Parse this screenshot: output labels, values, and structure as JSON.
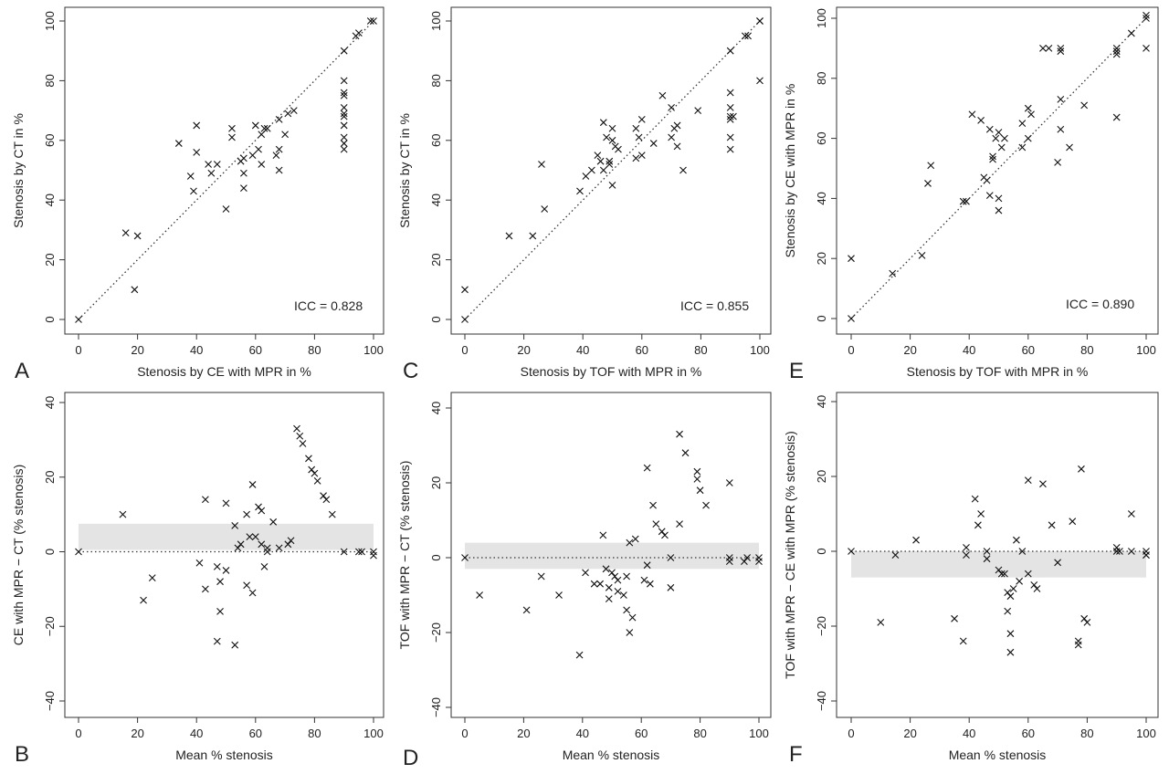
{
  "chart_data": [
    {
      "panel": "A",
      "type": "scatter",
      "xlabel": "Stenosis by CE with MPR in %",
      "ylabel": "Stenosis by CT in %",
      "xlim": [
        0,
        100
      ],
      "ylim": [
        0,
        100
      ],
      "xticks": [
        "0",
        "20",
        "40",
        "60",
        "80",
        "100"
      ],
      "yticks": [
        "0",
        "20",
        "40",
        "60",
        "80",
        "100"
      ],
      "annotation": "ICC =  0.828",
      "identity_line": true,
      "points": [
        [
          0,
          0
        ],
        [
          16,
          29
        ],
        [
          20,
          28
        ],
        [
          19,
          10
        ],
        [
          34,
          59
        ],
        [
          38,
          48
        ],
        [
          39,
          43
        ],
        [
          40,
          56
        ],
        [
          40,
          65
        ],
        [
          44,
          52
        ],
        [
          45,
          49
        ],
        [
          47,
          52
        ],
        [
          50,
          37
        ],
        [
          52,
          61
        ],
        [
          52,
          64
        ],
        [
          55,
          53
        ],
        [
          56,
          54
        ],
        [
          56,
          49
        ],
        [
          56,
          44
        ],
        [
          59,
          55
        ],
        [
          60,
          65
        ],
        [
          61,
          57
        ],
        [
          62,
          52
        ],
        [
          62,
          62
        ],
        [
          63,
          64
        ],
        [
          64,
          64
        ],
        [
          67,
          55
        ],
        [
          68,
          57
        ],
        [
          68,
          50
        ],
        [
          68,
          67
        ],
        [
          70,
          62
        ],
        [
          71,
          69
        ],
        [
          73,
          70
        ],
        [
          90,
          90
        ],
        [
          94,
          95
        ],
        [
          95,
          96
        ],
        [
          99,
          100
        ],
        [
          100,
          100
        ],
        [
          90,
          80
        ],
        [
          90,
          76
        ],
        [
          90,
          75
        ],
        [
          90,
          71
        ],
        [
          90,
          69
        ],
        [
          90,
          68
        ],
        [
          90,
          65
        ],
        [
          90,
          61
        ],
        [
          90,
          59
        ],
        [
          90,
          57
        ]
      ]
    },
    {
      "panel": "C",
      "type": "scatter",
      "xlabel": "Stenosis by TOF with MPR in %",
      "ylabel": "Stenosis by CT in %",
      "xlim": [
        0,
        100
      ],
      "ylim": [
        0,
        100
      ],
      "xticks": [
        "0",
        "20",
        "40",
        "60",
        "80",
        "100"
      ],
      "yticks": [
        "0",
        "20",
        "40",
        "60",
        "80",
        "100"
      ],
      "annotation": "ICC =  0.855",
      "identity_line": true,
      "points": [
        [
          0,
          0
        ],
        [
          0,
          10
        ],
        [
          15,
          28
        ],
        [
          23,
          28
        ],
        [
          26,
          52
        ],
        [
          27,
          37
        ],
        [
          39,
          43
        ],
        [
          41,
          48
        ],
        [
          43,
          50
        ],
        [
          45,
          55
        ],
        [
          46,
          53
        ],
        [
          47,
          50
        ],
        [
          47,
          66
        ],
        [
          48,
          61
        ],
        [
          49,
          53
        ],
        [
          49,
          52
        ],
        [
          50,
          60
        ],
        [
          50,
          45
        ],
        [
          50,
          64
        ],
        [
          51,
          58
        ],
        [
          52,
          57
        ],
        [
          58,
          54
        ],
        [
          58,
          64
        ],
        [
          59,
          61
        ],
        [
          60,
          55
        ],
        [
          60,
          67
        ],
        [
          64,
          59
        ],
        [
          67,
          75
        ],
        [
          70,
          61
        ],
        [
          70,
          71
        ],
        [
          71,
          64
        ],
        [
          72,
          65
        ],
        [
          72,
          58
        ],
        [
          74,
          50
        ],
        [
          79,
          70
        ],
        [
          90,
          90
        ],
        [
          90,
          76
        ],
        [
          90,
          71
        ],
        [
          90,
          68
        ],
        [
          90,
          67
        ],
        [
          90,
          61
        ],
        [
          90,
          57
        ],
        [
          91,
          68
        ],
        [
          95,
          95
        ],
        [
          96,
          95
        ],
        [
          100,
          100
        ],
        [
          100,
          100
        ],
        [
          100,
          80
        ]
      ]
    },
    {
      "panel": "E",
      "type": "scatter",
      "xlabel": "Stenosis by TOF with MPR in %",
      "ylabel": "Stenosis by CE with MPR in %",
      "xlim": [
        0,
        100
      ],
      "ylim": [
        0,
        100
      ],
      "xticks": [
        "0",
        "20",
        "40",
        "60",
        "80",
        "100"
      ],
      "yticks": [
        "0",
        "20",
        "40",
        "60",
        "80",
        "100"
      ],
      "annotation": "ICC =  0.890",
      "identity_line": true,
      "points": [
        [
          0,
          0
        ],
        [
          0,
          20
        ],
        [
          14,
          15
        ],
        [
          24,
          21
        ],
        [
          26,
          45
        ],
        [
          27,
          51
        ],
        [
          38,
          39
        ],
        [
          39,
          39
        ],
        [
          41,
          68
        ],
        [
          44,
          66
        ],
        [
          45,
          47
        ],
        [
          46,
          46
        ],
        [
          47,
          63
        ],
        [
          47,
          41
        ],
        [
          48,
          53
        ],
        [
          48,
          54
        ],
        [
          49,
          60
        ],
        [
          50,
          62
        ],
        [
          50,
          40
        ],
        [
          50,
          36
        ],
        [
          51,
          57
        ],
        [
          52,
          60
        ],
        [
          58,
          57
        ],
        [
          58,
          65
        ],
        [
          60,
          70
        ],
        [
          60,
          60
        ],
        [
          61,
          68
        ],
        [
          65,
          90
        ],
        [
          67,
          90
        ],
        [
          70,
          52
        ],
        [
          71,
          73
        ],
        [
          71,
          63
        ],
        [
          71,
          89
        ],
        [
          71,
          90
        ],
        [
          74,
          57
        ],
        [
          79,
          71
        ],
        [
          90,
          67
        ],
        [
          90,
          90
        ],
        [
          90,
          89
        ],
        [
          90,
          88
        ],
        [
          95,
          95
        ],
        [
          100,
          100
        ],
        [
          100,
          101
        ],
        [
          100,
          90
        ]
      ]
    },
    {
      "panel": "B",
      "type": "scatter",
      "xlabel": "Mean % stenosis",
      "ylabel": "CE with MPR  −  CT (% stenosis)",
      "xlim": [
        0,
        100
      ],
      "ylim": [
        -40,
        40
      ],
      "xticks": [
        "0",
        "20",
        "40",
        "60",
        "80",
        "100"
      ],
      "yticks": [
        "−40",
        "−20",
        "0",
        "20",
        "40"
      ],
      "band": [
        0.5,
        7.5
      ],
      "zero_line": true,
      "points": [
        [
          0,
          0
        ],
        [
          15,
          10
        ],
        [
          22,
          -13
        ],
        [
          25,
          -7
        ],
        [
          41,
          -3
        ],
        [
          43,
          14
        ],
        [
          43,
          -10
        ],
        [
          47,
          -24
        ],
        [
          47,
          -4
        ],
        [
          48,
          -8
        ],
        [
          48,
          -16
        ],
        [
          50,
          13
        ],
        [
          50,
          -5
        ],
        [
          53,
          -25
        ],
        [
          53,
          7
        ],
        [
          54,
          1
        ],
        [
          55,
          2
        ],
        [
          57,
          -9
        ],
        [
          57,
          10
        ],
        [
          58,
          4
        ],
        [
          59,
          -11
        ],
        [
          59,
          18
        ],
        [
          60,
          4
        ],
        [
          61,
          12
        ],
        [
          62,
          11
        ],
        [
          62,
          2
        ],
        [
          63,
          -4
        ],
        [
          64,
          0
        ],
        [
          64,
          1
        ],
        [
          66,
          8
        ],
        [
          68,
          1
        ],
        [
          71,
          2
        ],
        [
          72,
          3
        ],
        [
          74,
          33
        ],
        [
          75,
          31
        ],
        [
          76,
          29
        ],
        [
          78,
          25
        ],
        [
          79,
          22
        ],
        [
          80,
          21
        ],
        [
          81,
          19
        ],
        [
          83,
          15
        ],
        [
          84,
          14
        ],
        [
          86,
          10
        ],
        [
          90,
          0
        ],
        [
          95,
          0
        ],
        [
          96,
          0
        ],
        [
          100,
          0
        ],
        [
          100,
          -1
        ]
      ]
    },
    {
      "panel": "D",
      "type": "scatter",
      "xlabel": "Mean % stenosis",
      "ylabel": "TOF with MPR  −  CT (% stenosis)",
      "xlim": [
        0,
        100
      ],
      "ylim": [
        -40,
        40
      ],
      "xticks": [
        "0",
        "20",
        "40",
        "60",
        "80",
        "100"
      ],
      "yticks": [
        "−40",
        "−20",
        "0",
        "20",
        "40"
      ],
      "band": [
        -3,
        4
      ],
      "zero_line": true,
      "points": [
        [
          0,
          0
        ],
        [
          5,
          -10
        ],
        [
          21,
          -14
        ],
        [
          26,
          -5
        ],
        [
          32,
          -10
        ],
        [
          39,
          -26
        ],
        [
          41,
          -4
        ],
        [
          44,
          -7
        ],
        [
          46,
          -7
        ],
        [
          47,
          6
        ],
        [
          48,
          -3
        ],
        [
          49,
          -8
        ],
        [
          49,
          -11
        ],
        [
          50,
          -4
        ],
        [
          51,
          -5
        ],
        [
          52,
          -9
        ],
        [
          52,
          -6
        ],
        [
          54,
          -10
        ],
        [
          55,
          -14
        ],
        [
          55,
          -5
        ],
        [
          56,
          4
        ],
        [
          56,
          -20
        ],
        [
          57,
          -16
        ],
        [
          58,
          5
        ],
        [
          61,
          -6
        ],
        [
          62,
          -2
        ],
        [
          62,
          24
        ],
        [
          63,
          -7
        ],
        [
          64,
          14
        ],
        [
          65,
          9
        ],
        [
          67,
          7
        ],
        [
          68,
          6
        ],
        [
          70,
          0
        ],
        [
          70,
          -8
        ],
        [
          73,
          33
        ],
        [
          73,
          9
        ],
        [
          75,
          28
        ],
        [
          79,
          23
        ],
        [
          79,
          21
        ],
        [
          80,
          18
        ],
        [
          82,
          14
        ],
        [
          90,
          20
        ],
        [
          90,
          0
        ],
        [
          90,
          -1
        ],
        [
          95,
          -1
        ],
        [
          96,
          0
        ],
        [
          100,
          0
        ],
        [
          100,
          -1
        ]
      ]
    },
    {
      "panel": "F",
      "type": "scatter",
      "xlabel": "Mean % stenosis",
      "ylabel": "TOF with MPR  −  CE with MPR (% stenosis)",
      "xlim": [
        0,
        100
      ],
      "ylim": [
        -40,
        40
      ],
      "xticks": [
        "0",
        "20",
        "40",
        "60",
        "80",
        "100"
      ],
      "yticks": [
        "−40",
        "−20",
        "0",
        "20",
        "40"
      ],
      "band": [
        -7,
        0
      ],
      "zero_line": true,
      "points": [
        [
          0,
          0
        ],
        [
          10,
          -19
        ],
        [
          15,
          -1
        ],
        [
          22,
          3
        ],
        [
          35,
          -18
        ],
        [
          38,
          -24
        ],
        [
          39,
          1
        ],
        [
          39,
          -1
        ],
        [
          42,
          14
        ],
        [
          43,
          7
        ],
        [
          44,
          10
        ],
        [
          46,
          0
        ],
        [
          46,
          -2
        ],
        [
          50,
          -5
        ],
        [
          51,
          -6
        ],
        [
          52,
          -6
        ],
        [
          53,
          -11
        ],
        [
          53,
          -16
        ],
        [
          54,
          -12
        ],
        [
          54,
          -22
        ],
        [
          54,
          -27
        ],
        [
          55,
          -10
        ],
        [
          56,
          3
        ],
        [
          57,
          -8
        ],
        [
          58,
          0
        ],
        [
          60,
          19
        ],
        [
          60,
          -6
        ],
        [
          62,
          -9
        ],
        [
          63,
          -10
        ],
        [
          65,
          18
        ],
        [
          68,
          7
        ],
        [
          70,
          -3
        ],
        [
          75,
          8
        ],
        [
          77,
          -25
        ],
        [
          77,
          -24
        ],
        [
          78,
          22
        ],
        [
          79,
          -18
        ],
        [
          80,
          -19
        ],
        [
          90,
          1
        ],
        [
          90,
          0
        ],
        [
          91,
          0
        ],
        [
          95,
          10
        ],
        [
          95,
          0
        ],
        [
          100,
          0
        ],
        [
          100,
          -1
        ],
        [
          100,
          -1
        ]
      ]
    }
  ],
  "panel_letters": {
    "A": "A",
    "B": "B",
    "C": "C",
    "D": "D",
    "E": "E",
    "F": "F"
  }
}
